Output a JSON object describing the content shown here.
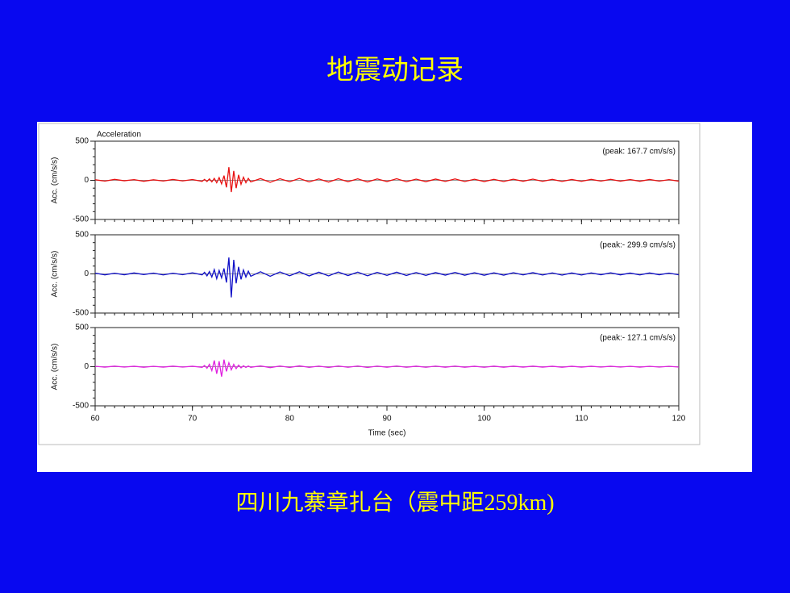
{
  "title": "地震动记录",
  "caption": "四川九寨章扎台（震中距259km)",
  "chart_data": [
    {
      "type": "line",
      "title": "Acceleration",
      "ylabel": "Acc. (cm/s/s)",
      "annotation": "(peak: 167.7 cm/s/s)",
      "color": "#e81010",
      "xlim": [
        60,
        120
      ],
      "xticks": [
        60,
        70,
        80,
        90,
        100,
        110,
        120
      ],
      "ylim": [
        -500,
        500
      ],
      "yticks": [
        500,
        0,
        -500
      ],
      "x": [
        60,
        61,
        62,
        63,
        64,
        65,
        66,
        67,
        68,
        69,
        70,
        71,
        71.25,
        71.5,
        71.75,
        72,
        72.25,
        72.5,
        72.75,
        73,
        73.25,
        73.5,
        73.75,
        74,
        74.25,
        74.5,
        74.75,
        75,
        75.25,
        75.5,
        75.75,
        76,
        77,
        78,
        79,
        80,
        81,
        82,
        83,
        84,
        85,
        86,
        87,
        88,
        89,
        90,
        91,
        92,
        93,
        94,
        95,
        96,
        97,
        98,
        99,
        100,
        101,
        102,
        103,
        104,
        105,
        106,
        107,
        108,
        109,
        110,
        111,
        112,
        113,
        114,
        115,
        116,
        117,
        118,
        119,
        120
      ],
      "values": [
        8,
        -10,
        12,
        -6,
        9,
        -12,
        7,
        -9,
        11,
        -8,
        10,
        -13,
        12,
        -15,
        18,
        -20,
        25,
        -30,
        35,
        -45,
        60,
        -90,
        167.7,
        -150,
        120,
        -100,
        70,
        -50,
        40,
        -30,
        25,
        -20,
        22,
        -25,
        20,
        -18,
        24,
        -20,
        18,
        -22,
        20,
        -17,
        19,
        -21,
        18,
        -16,
        20,
        -18,
        15,
        -17,
        16,
        -14,
        18,
        -15,
        14,
        -16,
        13,
        -15,
        14,
        -12,
        15,
        -13,
        12,
        -14,
        11,
        -13,
        12,
        -10,
        13,
        -11,
        10,
        -12,
        11,
        -10,
        9,
        -11
      ]
    },
    {
      "type": "line",
      "ylabel": "Acc. (cm/s/s)",
      "annotation": "(peak:- 299.9 cm/s/s)",
      "color": "#1010c8",
      "xlim": [
        60,
        120
      ],
      "xticks": [
        60,
        70,
        80,
        90,
        100,
        110,
        120
      ],
      "ylim": [
        -500,
        500
      ],
      "yticks": [
        500,
        0,
        -500
      ],
      "x": [
        60,
        61,
        62,
        63,
        64,
        65,
        66,
        67,
        68,
        69,
        70,
        71,
        71.25,
        71.5,
        71.75,
        72,
        72.25,
        72.5,
        72.75,
        73,
        73.25,
        73.5,
        73.75,
        74,
        74.25,
        74.5,
        74.75,
        75,
        75.25,
        75.5,
        75.75,
        76,
        77,
        78,
        79,
        80,
        81,
        82,
        83,
        84,
        85,
        86,
        87,
        88,
        89,
        90,
        91,
        92,
        93,
        94,
        95,
        96,
        97,
        98,
        99,
        100,
        101,
        102,
        103,
        104,
        105,
        106,
        107,
        108,
        109,
        110,
        111,
        112,
        113,
        114,
        115,
        116,
        117,
        118,
        119,
        120
      ],
      "values": [
        10,
        -12,
        9,
        -11,
        12,
        -8,
        10,
        -13,
        9,
        -10,
        14,
        -12,
        20,
        -25,
        30,
        -40,
        55,
        -60,
        45,
        -50,
        70,
        -110,
        210,
        -299.9,
        180,
        -120,
        90,
        -70,
        50,
        -40,
        35,
        -30,
        28,
        -30,
        25,
        -24,
        27,
        -26,
        22,
        -25,
        24,
        -21,
        23,
        -24,
        20,
        -19,
        22,
        -20,
        18,
        -19,
        17,
        -16,
        19,
        -17,
        15,
        -17,
        14,
        -16,
        15,
        -13,
        16,
        -14,
        13,
        -15,
        12,
        -14,
        13,
        -11,
        14,
        -12,
        11,
        -13,
        12,
        -11,
        10,
        -12
      ]
    },
    {
      "type": "line",
      "ylabel": "Acc. (cm/s/s)",
      "annotation": "(peak:- 127.1 cm/s/s)",
      "color": "#e020e0",
      "xlabel": "Time (sec)",
      "xlim": [
        60,
        120
      ],
      "xticks": [
        60,
        70,
        80,
        90,
        100,
        110,
        120
      ],
      "ylim": [
        -500,
        500
      ],
      "yticks": [
        500,
        0,
        -500
      ],
      "x": [
        60,
        61,
        62,
        63,
        64,
        65,
        66,
        67,
        68,
        69,
        70,
        71,
        71.25,
        71.5,
        71.75,
        72,
        72.25,
        72.5,
        72.75,
        73,
        73.25,
        73.5,
        73.75,
        74,
        74.25,
        74.5,
        74.75,
        75,
        75.25,
        75.5,
        75.75,
        76,
        77,
        78,
        79,
        80,
        81,
        82,
        83,
        84,
        85,
        86,
        87,
        88,
        89,
        90,
        91,
        92,
        93,
        94,
        95,
        96,
        97,
        98,
        99,
        100,
        101,
        102,
        103,
        104,
        105,
        106,
        107,
        108,
        109,
        110,
        111,
        112,
        113,
        114,
        115,
        116,
        117,
        118,
        119,
        120
      ],
      "values": [
        5,
        -6,
        7,
        -5,
        6,
        -7,
        5,
        -6,
        7,
        -5,
        6,
        -8,
        15,
        -20,
        30,
        -50,
        80,
        -90,
        70,
        -127.1,
        90,
        -60,
        50,
        -40,
        30,
        -25,
        20,
        -15,
        12,
        -10,
        9,
        -8,
        10,
        -12,
        9,
        -10,
        11,
        -9,
        8,
        -10,
        9,
        -8,
        9,
        -10,
        8,
        -7,
        9,
        -8,
        7,
        -8,
        8,
        -7,
        8,
        -7,
        6,
        -8,
        7,
        -7,
        7,
        -6,
        7,
        -6,
        6,
        -7,
        6,
        -6,
        6,
        -5,
        6,
        -5,
        5,
        -6,
        5,
        -5,
        5,
        -5
      ]
    }
  ]
}
